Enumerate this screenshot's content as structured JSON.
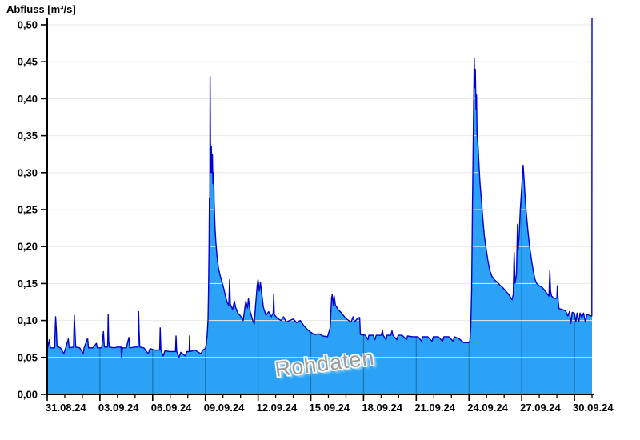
{
  "title": "Abfluss [m³/s]",
  "watermark": "Rohdaten",
  "chart_data": {
    "type": "area",
    "title": "Abfluss [m³/s]",
    "ylabel": "Abfluss [m³/s]",
    "xlabel": "",
    "series_name": "Abfluss Rohdaten",
    "unit": "m³/s",
    "grid": {
      "horizontal": true,
      "vertical_inside_area": true
    },
    "legend_position": "none",
    "ylim": [
      0,
      0.5
    ],
    "x_days_total": 31,
    "x_axis": {
      "start_date": "31.08.24",
      "end_date": "01.10.24",
      "major_tick_interval_days": 3,
      "minor_tick_interval_days": 1,
      "ticks": [
        {
          "label": "31.08.24",
          "day": 0
        },
        {
          "label": "03.09.24",
          "day": 3
        },
        {
          "label": "06.09.24",
          "day": 6
        },
        {
          "label": "09.09.24",
          "day": 9
        },
        {
          "label": "12.09.24",
          "day": 12
        },
        {
          "label": "15.09.24",
          "day": 15
        },
        {
          "label": "18.09.24",
          "day": 18
        },
        {
          "label": "21.09.24",
          "day": 21
        },
        {
          "label": "24.09.24",
          "day": 24
        },
        {
          "label": "27.09.24",
          "day": 27
        },
        {
          "label": "30.09.24",
          "day": 30
        }
      ]
    },
    "y_axis": {
      "ticks": [
        {
          "label": "0,00",
          "value": 0.0
        },
        {
          "label": "0,05",
          "value": 0.05
        },
        {
          "label": "0,10",
          "value": 0.1
        },
        {
          "label": "0,15",
          "value": 0.15
        },
        {
          "label": "0,20",
          "value": 0.2
        },
        {
          "label": "0,25",
          "value": 0.25
        },
        {
          "label": "0,30",
          "value": 0.3
        },
        {
          "label": "0,35",
          "value": 0.35
        },
        {
          "label": "0,40",
          "value": 0.4
        },
        {
          "label": "0,45",
          "value": 0.45
        },
        {
          "label": "0,50",
          "value": 0.5
        }
      ]
    },
    "colors": {
      "fill": "#2ba2f5",
      "line": "#0000cc",
      "axis": "#000000",
      "h_grid": "#e8e8e8",
      "v_grid": "rgba(0,0,0,0.30)",
      "background": "#ffffff",
      "watermark": "#9b9b9b"
    },
    "peaks": [
      {
        "date": "09.09.24",
        "value": 0.43
      },
      {
        "date": "24.09.24",
        "value": 0.455
      },
      {
        "date": "27.09.24",
        "value": 0.31
      },
      {
        "date": "30.09.24",
        "value": "> 0,50 (off scale)"
      }
    ],
    "points": [
      [
        0,
        0.06
      ],
      [
        0.12,
        0.074
      ],
      [
        0.18,
        0.063
      ],
      [
        0.42,
        0.063
      ],
      [
        0.48,
        0.105
      ],
      [
        0.52,
        0.088
      ],
      [
        0.56,
        0.065
      ],
      [
        0.75,
        0.063
      ],
      [
        0.95,
        0.055
      ],
      [
        1.05,
        0.063
      ],
      [
        1.2,
        0.075
      ],
      [
        1.25,
        0.063
      ],
      [
        1.5,
        0.064
      ],
      [
        1.54,
        0.107
      ],
      [
        1.58,
        0.085
      ],
      [
        1.62,
        0.064
      ],
      [
        1.85,
        0.063
      ],
      [
        2.05,
        0.055
      ],
      [
        2.1,
        0.063
      ],
      [
        2.3,
        0.076
      ],
      [
        2.35,
        0.063
      ],
      [
        2.6,
        0.063
      ],
      [
        2.8,
        0.069
      ],
      [
        2.85,
        0.063
      ],
      [
        3.1,
        0.063
      ],
      [
        3.2,
        0.085
      ],
      [
        3.25,
        0.064
      ],
      [
        3.44,
        0.064
      ],
      [
        3.47,
        0.108
      ],
      [
        3.5,
        0.072
      ],
      [
        3.55,
        0.064
      ],
      [
        3.8,
        0.063
      ],
      [
        4.0,
        0.064
      ],
      [
        4.2,
        0.064
      ],
      [
        4.23,
        0.05
      ],
      [
        4.28,
        0.063
      ],
      [
        4.5,
        0.063
      ],
      [
        4.65,
        0.077
      ],
      [
        4.7,
        0.063
      ],
      [
        5.0,
        0.064
      ],
      [
        5.17,
        0.064
      ],
      [
        5.2,
        0.112
      ],
      [
        5.23,
        0.086
      ],
      [
        5.27,
        0.064
      ],
      [
        5.5,
        0.063
      ],
      [
        5.75,
        0.055
      ],
      [
        5.85,
        0.062
      ],
      [
        6.1,
        0.06
      ],
      [
        6.4,
        0.06
      ],
      [
        6.43,
        0.09
      ],
      [
        6.47,
        0.06
      ],
      [
        6.6,
        0.052
      ],
      [
        6.7,
        0.059
      ],
      [
        6.95,
        0.058
      ],
      [
        7.3,
        0.058
      ],
      [
        7.33,
        0.079
      ],
      [
        7.37,
        0.058
      ],
      [
        7.5,
        0.05
      ],
      [
        7.6,
        0.057
      ],
      [
        7.85,
        0.052
      ],
      [
        7.95,
        0.058
      ],
      [
        8.08,
        0.058
      ],
      [
        8.1,
        0.079
      ],
      [
        8.13,
        0.058
      ],
      [
        8.4,
        0.06
      ],
      [
        8.75,
        0.055
      ],
      [
        8.85,
        0.06
      ],
      [
        9.0,
        0.062
      ],
      [
        9.05,
        0.068
      ],
      [
        9.1,
        0.08
      ],
      [
        9.15,
        0.1
      ],
      [
        9.18,
        0.14
      ],
      [
        9.21,
        0.2
      ],
      [
        9.23,
        0.265
      ],
      [
        9.25,
        0.21
      ],
      [
        9.27,
        0.43
      ],
      [
        9.29,
        0.34
      ],
      [
        9.31,
        0.3
      ],
      [
        9.34,
        0.335
      ],
      [
        9.37,
        0.3
      ],
      [
        9.4,
        0.325
      ],
      [
        9.43,
        0.285
      ],
      [
        9.47,
        0.3
      ],
      [
        9.5,
        0.26
      ],
      [
        9.55,
        0.225
      ],
      [
        9.6,
        0.205
      ],
      [
        9.67,
        0.185
      ],
      [
        9.75,
        0.17
      ],
      [
        9.85,
        0.16
      ],
      [
        9.95,
        0.152
      ],
      [
        10.05,
        0.143
      ],
      [
        10.15,
        0.132
      ],
      [
        10.25,
        0.124
      ],
      [
        10.33,
        0.12
      ],
      [
        10.38,
        0.155
      ],
      [
        10.42,
        0.122
      ],
      [
        10.55,
        0.115
      ],
      [
        10.65,
        0.126
      ],
      [
        10.72,
        0.118
      ],
      [
        10.85,
        0.11
      ],
      [
        11.0,
        0.106
      ],
      [
        11.15,
        0.1
      ],
      [
        11.3,
        0.126
      ],
      [
        11.4,
        0.117
      ],
      [
        11.45,
        0.13
      ],
      [
        11.55,
        0.112
      ],
      [
        11.7,
        0.1
      ],
      [
        11.78,
        0.095
      ],
      [
        11.85,
        0.118
      ],
      [
        11.95,
        0.148
      ],
      [
        12.0,
        0.155
      ],
      [
        12.07,
        0.14
      ],
      [
        12.13,
        0.152
      ],
      [
        12.2,
        0.138
      ],
      [
        12.3,
        0.118
      ],
      [
        12.45,
        0.107
      ],
      [
        12.6,
        0.112
      ],
      [
        12.75,
        0.105
      ],
      [
        12.86,
        0.11
      ],
      [
        12.89,
        0.135
      ],
      [
        12.92,
        0.108
      ],
      [
        13.1,
        0.103
      ],
      [
        13.3,
        0.1
      ],
      [
        13.45,
        0.105
      ],
      [
        13.6,
        0.098
      ],
      [
        13.8,
        0.1
      ],
      [
        14.0,
        0.102
      ],
      [
        14.2,
        0.097
      ],
      [
        14.4,
        0.1
      ],
      [
        14.6,
        0.093
      ],
      [
        14.8,
        0.088
      ],
      [
        15.0,
        0.084
      ],
      [
        15.2,
        0.081
      ],
      [
        15.45,
        0.082
      ],
      [
        15.7,
        0.079
      ],
      [
        15.95,
        0.078
      ],
      [
        16.1,
        0.09
      ],
      [
        16.18,
        0.13
      ],
      [
        16.22,
        0.135
      ],
      [
        16.28,
        0.12
      ],
      [
        16.33,
        0.133
      ],
      [
        16.4,
        0.121
      ],
      [
        16.55,
        0.115
      ],
      [
        16.75,
        0.11
      ],
      [
        16.95,
        0.104
      ],
      [
        17.15,
        0.1
      ],
      [
        17.3,
        0.098
      ],
      [
        17.4,
        0.105
      ],
      [
        17.5,
        0.098
      ],
      [
        17.65,
        0.103
      ],
      [
        17.78,
        0.104
      ],
      [
        17.82,
        0.081
      ],
      [
        18.1,
        0.08
      ],
      [
        18.25,
        0.074
      ],
      [
        18.3,
        0.08
      ],
      [
        18.55,
        0.08
      ],
      [
        18.65,
        0.074
      ],
      [
        18.72,
        0.08
      ],
      [
        19.0,
        0.08
      ],
      [
        19.08,
        0.086
      ],
      [
        19.12,
        0.08
      ],
      [
        19.28,
        0.074
      ],
      [
        19.33,
        0.08
      ],
      [
        19.55,
        0.08
      ],
      [
        19.62,
        0.086
      ],
      [
        19.67,
        0.08
      ],
      [
        19.9,
        0.074
      ],
      [
        19.97,
        0.08
      ],
      [
        20.2,
        0.08
      ],
      [
        20.45,
        0.074
      ],
      [
        20.5,
        0.079
      ],
      [
        20.8,
        0.078
      ],
      [
        21.1,
        0.078
      ],
      [
        21.3,
        0.072
      ],
      [
        21.36,
        0.078
      ],
      [
        21.65,
        0.078
      ],
      [
        21.9,
        0.072
      ],
      [
        21.97,
        0.078
      ],
      [
        22.25,
        0.078
      ],
      [
        22.5,
        0.072
      ],
      [
        22.57,
        0.078
      ],
      [
        22.85,
        0.078
      ],
      [
        23.1,
        0.072
      ],
      [
        23.17,
        0.078
      ],
      [
        23.45,
        0.075
      ],
      [
        23.7,
        0.07
      ],
      [
        23.95,
        0.07
      ],
      [
        24.05,
        0.072
      ],
      [
        24.1,
        0.09
      ],
      [
        24.15,
        0.14
      ],
      [
        24.2,
        0.26
      ],
      [
        24.26,
        0.38
      ],
      [
        24.3,
        0.455
      ],
      [
        24.33,
        0.415
      ],
      [
        24.36,
        0.44
      ],
      [
        24.4,
        0.385
      ],
      [
        24.43,
        0.405
      ],
      [
        24.46,
        0.35
      ],
      [
        24.52,
        0.335
      ],
      [
        24.58,
        0.305
      ],
      [
        24.63,
        0.285
      ],
      [
        24.7,
        0.265
      ],
      [
        24.78,
        0.24
      ],
      [
        24.87,
        0.215
      ],
      [
        24.97,
        0.198
      ],
      [
        25.07,
        0.182
      ],
      [
        25.18,
        0.168
      ],
      [
        25.3,
        0.16
      ],
      [
        25.45,
        0.155
      ],
      [
        25.6,
        0.152
      ],
      [
        25.75,
        0.148
      ],
      [
        25.9,
        0.145
      ],
      [
        26.05,
        0.141
      ],
      [
        26.2,
        0.137
      ],
      [
        26.35,
        0.132
      ],
      [
        26.45,
        0.128
      ],
      [
        26.52,
        0.135
      ],
      [
        26.57,
        0.192
      ],
      [
        26.62,
        0.15
      ],
      [
        26.7,
        0.162
      ],
      [
        26.76,
        0.23
      ],
      [
        26.8,
        0.196
      ],
      [
        26.85,
        0.213
      ],
      [
        26.92,
        0.25
      ],
      [
        27.0,
        0.28
      ],
      [
        27.08,
        0.31
      ],
      [
        27.13,
        0.293
      ],
      [
        27.18,
        0.272
      ],
      [
        27.25,
        0.248
      ],
      [
        27.35,
        0.222
      ],
      [
        27.45,
        0.2
      ],
      [
        27.55,
        0.183
      ],
      [
        27.65,
        0.168
      ],
      [
        27.75,
        0.156
      ],
      [
        27.85,
        0.15
      ],
      [
        28.0,
        0.147
      ],
      [
        28.15,
        0.145
      ],
      [
        28.3,
        0.141
      ],
      [
        28.45,
        0.136
      ],
      [
        28.55,
        0.133
      ],
      [
        28.6,
        0.167
      ],
      [
        28.64,
        0.14
      ],
      [
        28.7,
        0.133
      ],
      [
        28.85,
        0.13
      ],
      [
        29.0,
        0.13
      ],
      [
        29.03,
        0.147
      ],
      [
        29.07,
        0.128
      ],
      [
        29.12,
        0.116
      ],
      [
        29.3,
        0.115
      ],
      [
        29.5,
        0.113
      ],
      [
        29.62,
        0.106
      ],
      [
        29.72,
        0.112
      ],
      [
        29.8,
        0.096
      ],
      [
        29.87,
        0.111
      ],
      [
        30.0,
        0.11
      ],
      [
        30.08,
        0.098
      ],
      [
        30.15,
        0.11
      ],
      [
        30.25,
        0.098
      ],
      [
        30.32,
        0.11
      ],
      [
        30.42,
        0.104
      ],
      [
        30.52,
        0.11
      ],
      [
        30.62,
        0.098
      ],
      [
        30.7,
        0.108
      ],
      [
        30.85,
        0.107
      ],
      [
        30.95,
        0.106
      ],
      [
        30.99,
        0.106
      ],
      [
        31.0,
        0.52
      ]
    ]
  }
}
